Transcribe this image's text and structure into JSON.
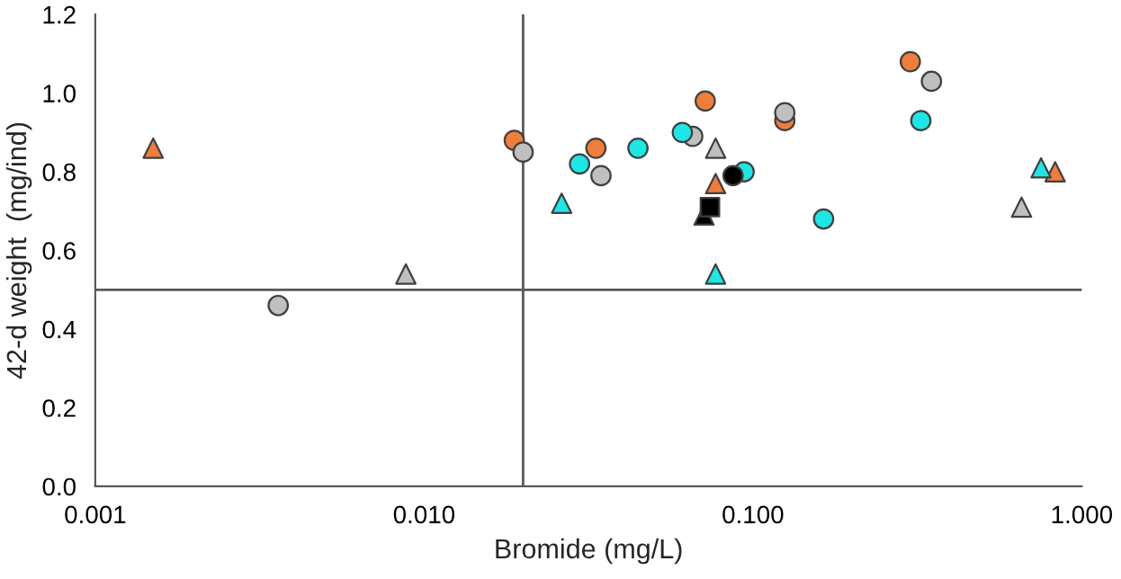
{
  "chart_data": {
    "type": "scatter",
    "xlabel": "Bromide (mg/L)",
    "ylabel": "42-d weight  (mg/ind)",
    "log": "x",
    "xlim": [
      0.001,
      1.0
    ],
    "xticks": [
      {
        "value": 0.001,
        "label": "0.001"
      },
      {
        "value": 0.01,
        "label": "0.010"
      },
      {
        "value": 0.1,
        "label": "0.100"
      },
      {
        "value": 1.0,
        "label": "1.000"
      }
    ],
    "ylim": [
      0.0,
      1.2
    ],
    "yticks": [
      {
        "value": 0.0,
        "label": "0.0"
      },
      {
        "value": 0.2,
        "label": "0.2"
      },
      {
        "value": 0.4,
        "label": "0.4"
      },
      {
        "value": 0.6,
        "label": "0.6"
      },
      {
        "value": 0.8,
        "label": "0.8"
      },
      {
        "value": 1.0,
        "label": "1.0"
      },
      {
        "value": 1.2,
        "label": "1.2"
      }
    ],
    "grid": false,
    "legend": false,
    "ref_lines": [
      {
        "axis": "x",
        "value": 0.02,
        "color": "#595959"
      },
      {
        "axis": "y",
        "value": 0.5,
        "color": "#595959"
      }
    ],
    "series": [
      {
        "color": "#f07d3c",
        "marker": "triangle",
        "x": [
          0.0015,
          0.077,
          0.83
        ],
        "values": [
          0.86,
          0.77,
          0.8
        ]
      },
      {
        "color": "#f07d3c",
        "marker": "circle",
        "x": [
          0.0188,
          0.0333,
          0.0716,
          0.125,
          0.301
        ],
        "values": [
          0.88,
          0.86,
          0.98,
          0.93,
          1.08
        ]
      },
      {
        "color": "#bfbfbf",
        "marker": "circle",
        "x": [
          0.0036,
          0.02,
          0.0345,
          0.0656,
          0.125,
          0.349
        ],
        "values": [
          0.46,
          0.85,
          0.79,
          0.89,
          0.95,
          1.03
        ]
      },
      {
        "color": "#bfbfbf",
        "marker": "triangle",
        "x": [
          0.0088,
          0.077,
          0.656
        ],
        "values": [
          0.54,
          0.86,
          0.71
        ]
      },
      {
        "color": "#1de6e6",
        "marker": "circle",
        "x": [
          0.0297,
          0.0447,
          0.061,
          0.094,
          0.164,
          0.324
        ],
        "values": [
          0.82,
          0.86,
          0.9,
          0.8,
          0.68,
          0.93
        ]
      },
      {
        "color": "#1de6e6",
        "marker": "triangle",
        "x": [
          0.0262,
          0.077,
          0.752
        ],
        "values": [
          0.72,
          0.54,
          0.81
        ]
      },
      {
        "color": "#000000",
        "marker": "circle",
        "x": [
          0.087
        ],
        "values": [
          0.79
        ]
      },
      {
        "color": "#000000",
        "marker": "triangle",
        "x": [
          0.071
        ],
        "values": [
          0.69
        ]
      },
      {
        "color": "#000000",
        "marker": "square",
        "x": [
          0.074
        ],
        "values": [
          0.71
        ]
      }
    ]
  }
}
